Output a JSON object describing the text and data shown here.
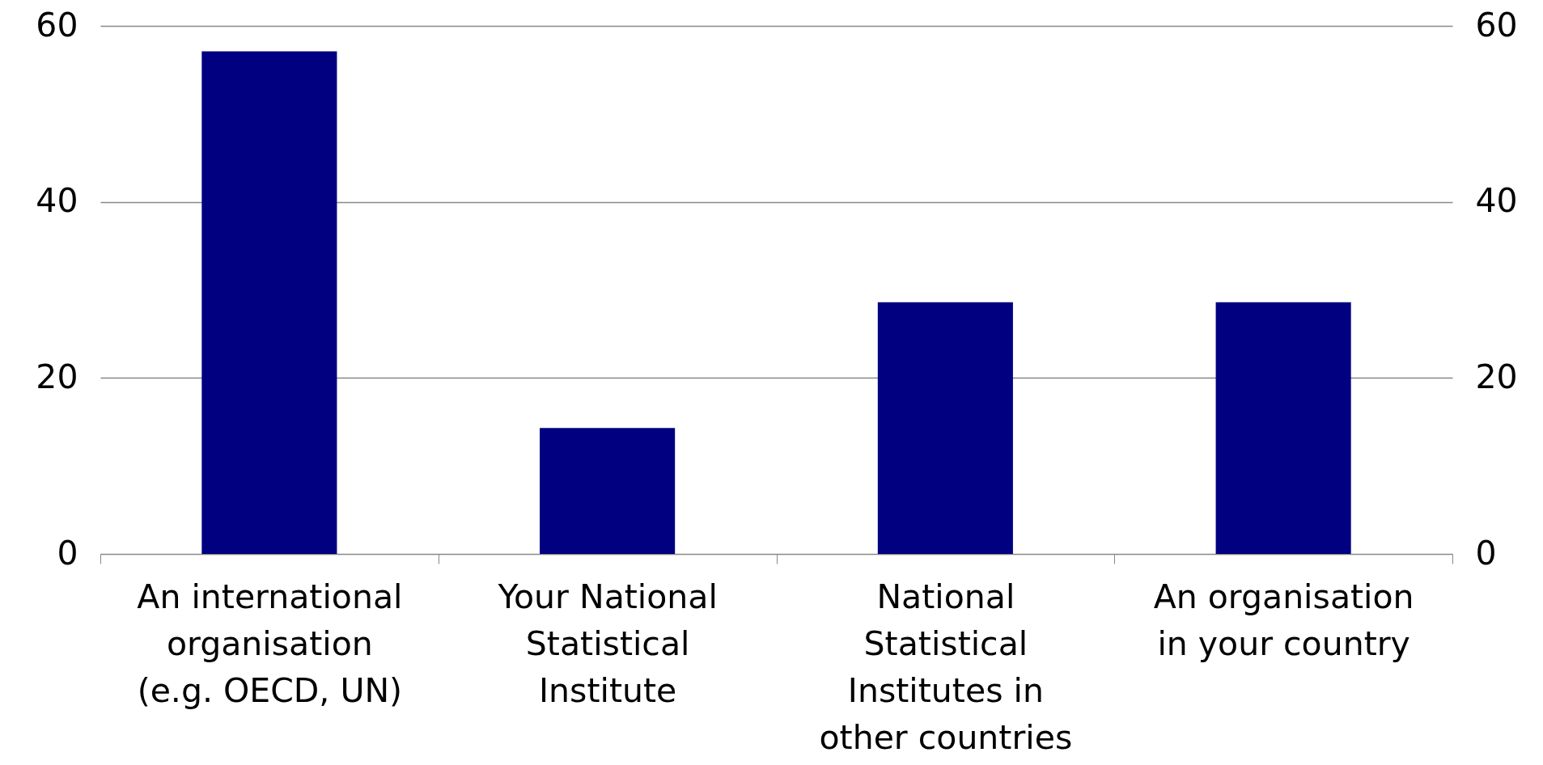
{
  "chart_data": {
    "type": "bar",
    "categories": [
      "An international organisation (e.g. OECD, UN)",
      "Your National Statistical Institute",
      "National Statistical Institutes in other countries",
      "An organisation in your country"
    ],
    "series": [
      {
        "color": "#000080",
        "values": [
          57.1,
          14.3,
          28.6,
          28.6
        ]
      }
    ],
    "ylim": [
      0,
      60
    ],
    "yticks": [
      0,
      20,
      40,
      60
    ],
    "y2lim": [
      0,
      60
    ],
    "y2ticks": [
      0,
      20,
      40,
      60
    ],
    "grid": "y"
  }
}
